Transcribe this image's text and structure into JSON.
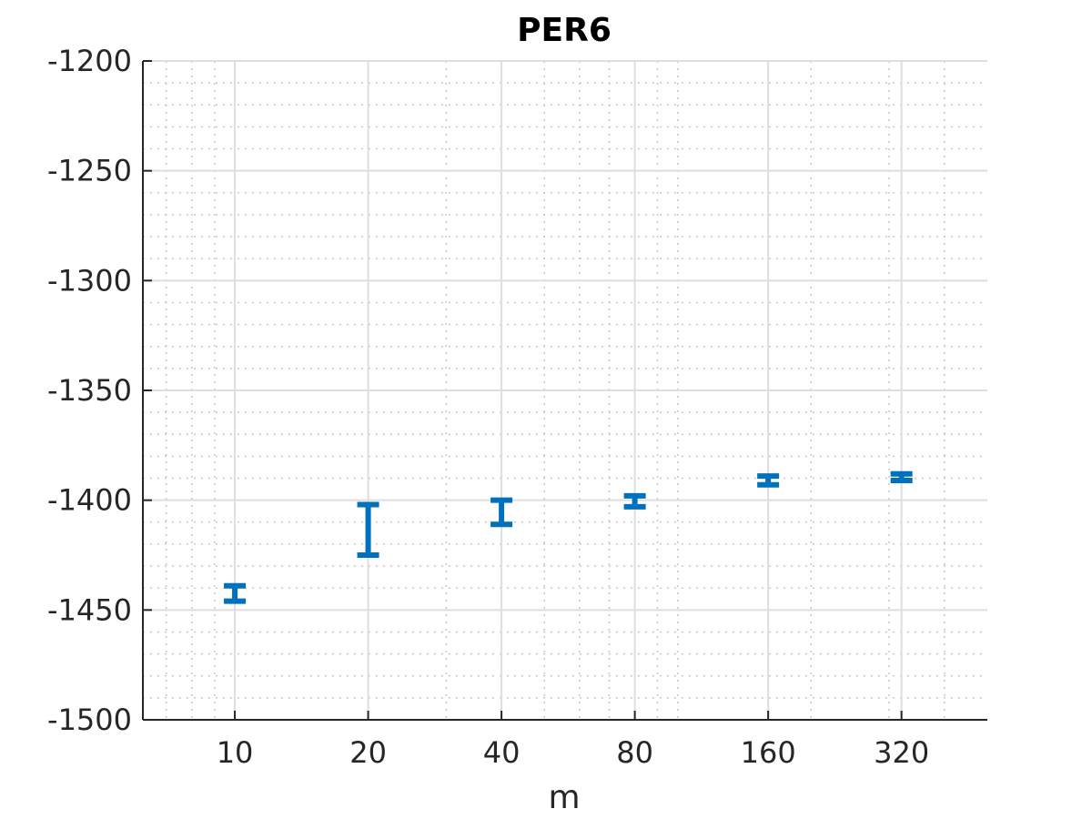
{
  "chart_data": {
    "type": "scatter",
    "title": "PER6",
    "xlabel": "m",
    "ylabel": "",
    "x_scale": "log2",
    "categories": [
      "10",
      "20",
      "40",
      "80",
      "160",
      "320"
    ],
    "x": [
      10,
      20,
      40,
      80,
      160,
      320
    ],
    "xlim": [
      6.2,
      500
    ],
    "ylim": [
      -1500,
      -1200
    ],
    "y_ticks": [
      -1200,
      -1250,
      -1300,
      -1350,
      -1400,
      -1450,
      -1500
    ],
    "y_tick_labels": [
      "-1200",
      "-1250",
      "-1300",
      "-1350",
      "-1400",
      "-1450",
      "-1500"
    ],
    "grid": true,
    "minor_grid": true,
    "color": "#0072BD",
    "series": [
      {
        "lower": [
          -1446,
          -1425,
          -1411,
          -1403,
          -1393,
          -1391
        ],
        "upper": [
          -1439,
          -1402,
          -1400,
          -1398,
          -1389,
          -1388
        ]
      }
    ]
  }
}
